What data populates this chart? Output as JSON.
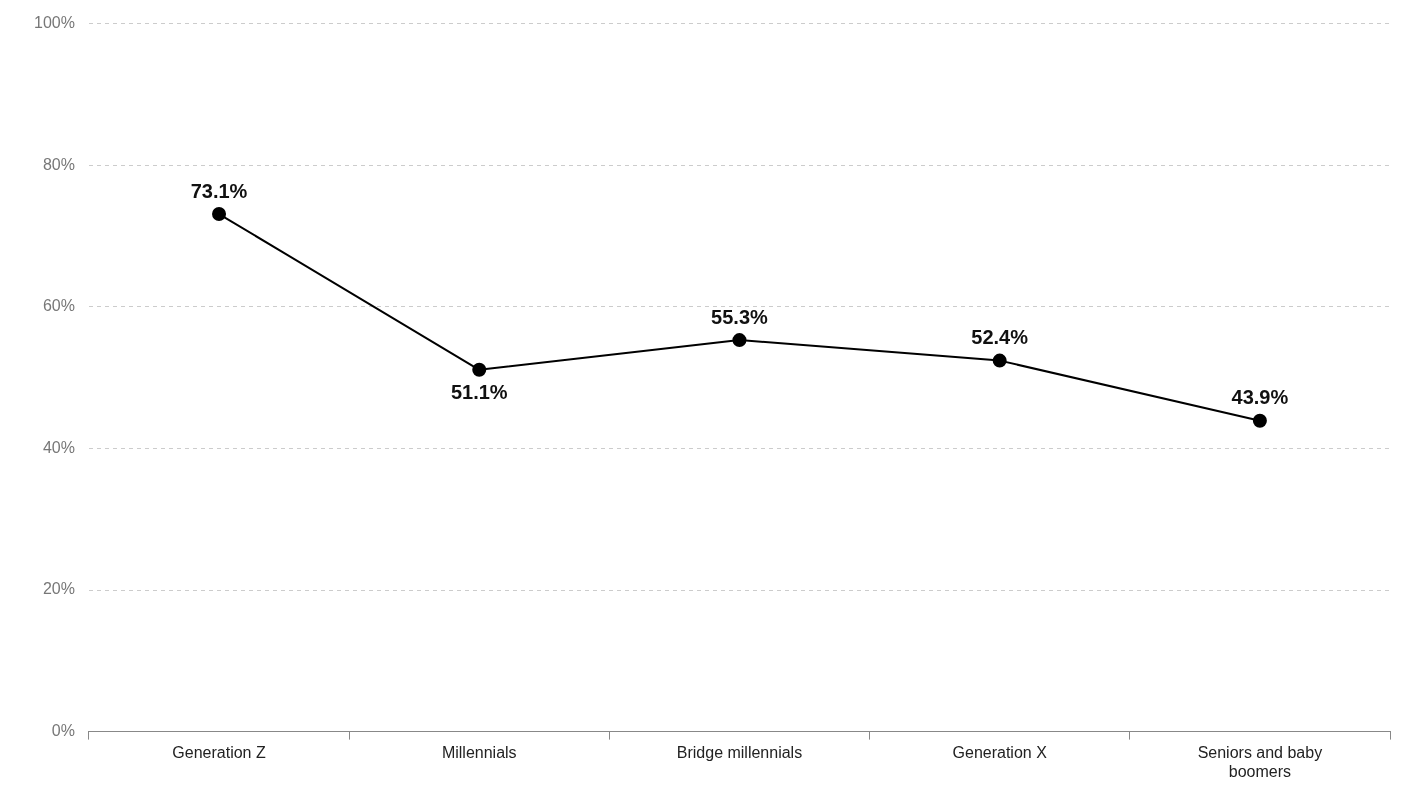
{
  "chart_data": {
    "type": "line",
    "categories": [
      "Generation Z",
      "Millennials",
      "Bridge millennials",
      "Generation X",
      "Seniors and baby boomers"
    ],
    "series": [
      {
        "color": "#000000",
        "values": [
          73.1,
          51.1,
          55.3,
          52.4,
          43.9
        ],
        "value_labels": [
          "73.1%",
          "51.1%",
          "55.3%",
          "52.4%",
          "43.9%"
        ]
      }
    ],
    "ylim": [
      0,
      100
    ],
    "yticks": [
      {
        "value": 0,
        "label": "0%"
      },
      {
        "value": 20,
        "label": "20%"
      },
      {
        "value": 40,
        "label": "40%"
      },
      {
        "value": 60,
        "label": "60%"
      },
      {
        "value": 80,
        "label": "80%"
      },
      {
        "value": 100,
        "label": "100%"
      }
    ],
    "grid": "y",
    "legend": false,
    "marker": "circle",
    "line_style": "solid"
  }
}
